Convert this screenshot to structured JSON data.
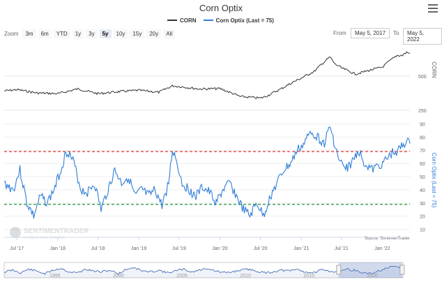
{
  "title": "Corn Optix",
  "legend": [
    {
      "label": "CORN",
      "color": "#333333"
    },
    {
      "label": "Corn Optix (Last = 75)",
      "color": "#2f7ed8"
    }
  ],
  "zoom": {
    "label": "Zoom",
    "buttons": [
      "3m",
      "6m",
      "YTD",
      "1y",
      "3y",
      "5y",
      "10y",
      "15y",
      "20y",
      "All"
    ],
    "active": "5y"
  },
  "range": {
    "from_label": "From",
    "from_value": "May 5, 2017",
    "to_label": "To",
    "to_value": "May 5, 2022"
  },
  "source": "Source: SentimenTrader",
  "watermark": {
    "name": "SENTIMENTRADER",
    "tagline": "Analysis over Emotion"
  },
  "colors": {
    "corn": "#333333",
    "optix": "#2f7ed8",
    "upper": "#e03131",
    "lower": "#2f9e44",
    "navigator": "#335cad"
  },
  "chart_data": [
    {
      "type": "line",
      "name": "corn-price-panel",
      "series": [
        {
          "name": "CORN",
          "color": "#333333",
          "x": [
            "2017-05-05",
            "2017-07-01",
            "2017-10-01",
            "2018-01-01",
            "2018-04-01",
            "2018-07-01",
            "2018-10-01",
            "2019-01-01",
            "2019-04-01",
            "2019-06-01",
            "2019-07-01",
            "2019-10-01",
            "2020-01-01",
            "2020-04-01",
            "2020-07-01",
            "2020-08-01",
            "2020-10-01",
            "2021-01-01",
            "2021-03-01",
            "2021-05-10",
            "2021-06-01",
            "2021-07-01",
            "2021-09-01",
            "2021-11-01",
            "2022-01-01",
            "2022-03-08",
            "2022-04-01",
            "2022-04-20",
            "2022-05-05"
          ],
          "values": [
            370,
            380,
            355,
            350,
            385,
            350,
            365,
            375,
            360,
            410,
            405,
            385,
            388,
            330,
            320,
            335,
            385,
            480,
            550,
            735,
            640,
            590,
            520,
            560,
            600,
            760,
            760,
            810,
            790
          ]
        }
      ],
      "ylabel": "CORN",
      "yscale": "log",
      "yticks": [
        250,
        500
      ],
      "ylim": [
        250,
        1000
      ]
    },
    {
      "type": "line",
      "name": "corn-optix-panel",
      "series": [
        {
          "name": "Corn Optix (Last = 75)",
          "color": "#2f7ed8",
          "x": [
            "2017-05-05",
            "2017-06-15",
            "2017-07-15",
            "2017-08-15",
            "2017-09-15",
            "2017-10-15",
            "2017-11-15",
            "2017-12-15",
            "2018-01-15",
            "2018-02-01",
            "2018-02-15",
            "2018-03-15",
            "2018-04-15",
            "2018-05-15",
            "2018-06-15",
            "2018-07-15",
            "2018-08-15",
            "2018-09-15",
            "2018-10-15",
            "2018-11-15",
            "2018-12-15",
            "2019-01-15",
            "2019-02-15",
            "2019-03-15",
            "2019-04-15",
            "2019-05-15",
            "2019-06-01",
            "2019-06-15",
            "2019-07-15",
            "2019-08-15",
            "2019-09-15",
            "2019-10-15",
            "2019-11-15",
            "2019-12-15",
            "2020-01-15",
            "2020-02-15",
            "2020-03-15",
            "2020-04-15",
            "2020-05-15",
            "2020-06-15",
            "2020-07-15",
            "2020-08-15",
            "2020-09-15",
            "2020-10-15",
            "2020-11-15",
            "2020-12-15",
            "2021-01-15",
            "2021-02-15",
            "2021-03-15",
            "2021-04-15",
            "2021-05-10",
            "2021-06-15",
            "2021-07-15",
            "2021-08-15",
            "2021-09-15",
            "2021-10-15",
            "2021-11-15",
            "2021-12-15",
            "2022-01-15",
            "2022-02-15",
            "2022-03-15",
            "2022-04-15",
            "2022-05-05"
          ],
          "values": [
            45,
            40,
            55,
            30,
            20,
            35,
            30,
            40,
            55,
            65,
            70,
            60,
            40,
            38,
            45,
            25,
            40,
            55,
            45,
            50,
            35,
            40,
            35,
            40,
            28,
            45,
            70,
            65,
            45,
            40,
            35,
            42,
            38,
            30,
            40,
            45,
            35,
            25,
            20,
            30,
            20,
            35,
            45,
            55,
            60,
            70,
            75,
            85,
            80,
            75,
            88,
            65,
            55,
            60,
            70,
            60,
            55,
            58,
            62,
            68,
            70,
            76,
            75
          ]
        }
      ],
      "ylabel": "Corn Optix (Last = 75)",
      "yticks": [
        10,
        20,
        30,
        40,
        50,
        60,
        70,
        80,
        90
      ],
      "ylim": [
        5,
        95
      ],
      "reference_lines": [
        {
          "value": 69,
          "color": "#e03131",
          "style": "dashed"
        },
        {
          "value": 29,
          "color": "#2f9e44",
          "style": "dashed"
        }
      ]
    }
  ],
  "xaxis": {
    "ticks": [
      {
        "label": "Jul '17",
        "date": "2017-07-01"
      },
      {
        "label": "Jan '18",
        "date": "2018-01-01"
      },
      {
        "label": "Jul '18",
        "date": "2018-07-01"
      },
      {
        "label": "Jan '19",
        "date": "2019-01-01"
      },
      {
        "label": "Jul '19",
        "date": "2019-07-01"
      },
      {
        "label": "Jan '20",
        "date": "2020-01-01"
      },
      {
        "label": "Jul '20",
        "date": "2020-07-01"
      },
      {
        "label": "Jan '21",
        "date": "2021-01-01"
      },
      {
        "label": "Jul '21",
        "date": "2021-07-01"
      },
      {
        "label": "Jan '22",
        "date": "2022-01-01"
      }
    ]
  },
  "navigator": {
    "labels": [
      "1995",
      "2000",
      "2005",
      "2010",
      "2015",
      "2020"
    ],
    "start_year": 1991,
    "end_year": 2022.4,
    "selected_from": 2017.34,
    "selected_to": 2022.34,
    "values": [
      45,
      55,
      40,
      60,
      50,
      35,
      55,
      65,
      45,
      40,
      60,
      50,
      45,
      55,
      35,
      60,
      70,
      50,
      45,
      55,
      40,
      50,
      60,
      45,
      55,
      65,
      50,
      40,
      45,
      55,
      60,
      50,
      40,
      45,
      55,
      50,
      60,
      45,
      40,
      55,
      50,
      45,
      60,
      55,
      40,
      35,
      50,
      65,
      75,
      70
    ]
  }
}
